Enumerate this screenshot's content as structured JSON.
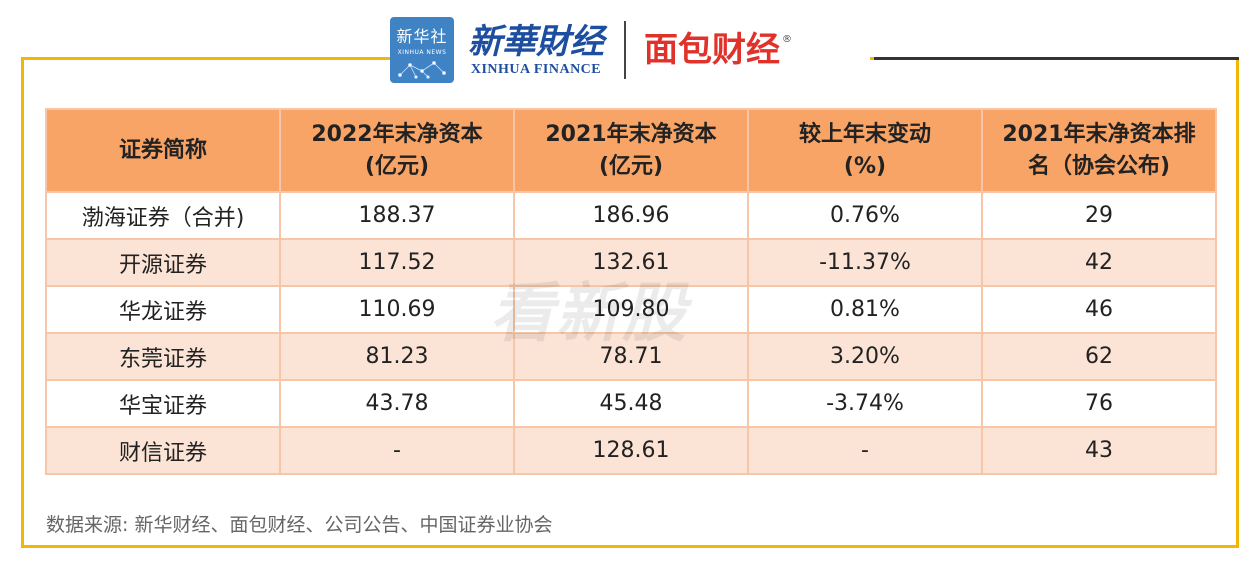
{
  "header": {
    "xinhua_logo_cn": "新华社",
    "xinhua_logo_en": "XINHUA NEWS",
    "xinhua_finance_cn": "新華財经",
    "xinhua_finance_en": "XINHUA FINANCE",
    "mianbao_logo": "面包财经",
    "registered_mark": "®"
  },
  "table": {
    "headers": [
      "证券简称",
      [
        "2022年末净资本",
        "(亿元)"
      ],
      [
        "2021年末净资本",
        "(亿元)"
      ],
      [
        "较上年末变动",
        "(%)"
      ],
      [
        "2021年末净资本排",
        "名（协会公布)"
      ]
    ],
    "rows": [
      [
        "渤海证券（合并)",
        "188.37",
        "186.96",
        "0.76%",
        "29"
      ],
      [
        "开源证券",
        "117.52",
        "132.61",
        "-11.37%",
        "42"
      ],
      [
        "华龙证券",
        "110.69",
        "109.80",
        "0.81%",
        "46"
      ],
      [
        "东莞证券",
        "81.23",
        "78.71",
        "3.20%",
        "62"
      ],
      [
        "华宝证券",
        "43.78",
        "45.48",
        "-3.74%",
        "76"
      ],
      [
        "财信证券",
        "-",
        "128.61",
        "-",
        "43"
      ]
    ]
  },
  "watermark": "看新股",
  "footer": {
    "source": "数据来源: 新华财经、面包财经、公司公告、中国证券业协会"
  }
}
